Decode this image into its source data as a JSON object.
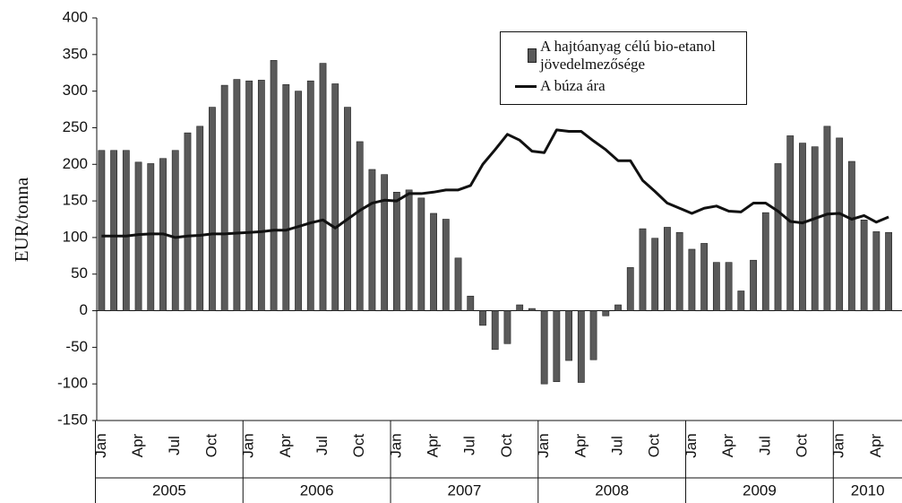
{
  "chart_data": {
    "type": "bar",
    "y_label": "EUR/tonna",
    "categories": [
      "Jan",
      null,
      null,
      "Apr",
      null,
      null,
      "Jul",
      null,
      null,
      "Oct",
      null,
      null,
      "Jan",
      null,
      null,
      "Apr",
      null,
      null,
      "Jul",
      null,
      null,
      "Oct",
      null,
      null,
      "Jan",
      null,
      null,
      "Apr",
      null,
      null,
      "Jul",
      null,
      null,
      "Oct",
      null,
      null,
      "Jan",
      null,
      null,
      "Apr",
      null,
      null,
      "Jul",
      null,
      null,
      "Oct",
      null,
      null,
      "Jan",
      null,
      null,
      "Apr",
      null,
      null,
      "Jul",
      null,
      null,
      "Oct",
      null,
      null,
      "Jan",
      null,
      null,
      "Apr",
      null
    ],
    "years": [
      "2005",
      "2006",
      "2007",
      "2008",
      "2009",
      "2010"
    ],
    "series": [
      {
        "name": "A hajtóanyag célú bio-etanol jövedelmezősége",
        "type": "bar",
        "color": "#5a5a5a",
        "values": [
          219,
          219,
          219,
          203,
          201,
          208,
          219,
          243,
          252,
          278,
          308,
          316,
          314,
          315,
          342,
          309,
          300,
          314,
          338,
          310,
          278,
          231,
          193,
          186,
          162,
          165,
          154,
          133,
          125,
          72,
          20,
          -20,
          -53,
          -45,
          8,
          3,
          -100,
          -97,
          -68,
          -98,
          -67,
          -7,
          8,
          59,
          112,
          99,
          114,
          107,
          84,
          92,
          66,
          66,
          27,
          69,
          134,
          201,
          239,
          229,
          224,
          252,
          236,
          204,
          124,
          108,
          107
        ]
      },
      {
        "name": "A búza ára",
        "type": "line",
        "color": "#111111",
        "values": [
          102,
          102,
          102,
          104,
          105,
          105,
          100,
          102,
          103,
          105,
          105,
          106,
          107,
          108,
          110,
          110,
          115,
          120,
          124,
          113,
          125,
          137,
          147,
          151,
          150,
          160,
          160,
          162,
          165,
          165,
          171,
          200,
          220,
          241,
          233,
          218,
          216,
          247,
          245,
          245,
          232,
          220,
          205,
          205,
          178,
          163,
          147,
          140,
          133,
          140,
          143,
          136,
          135,
          147,
          147,
          136,
          122,
          120,
          126,
          132,
          133,
          125,
          130,
          121,
          128
        ]
      }
    ],
    "ylim": [
      -150,
      400
    ],
    "yticks": [
      -150,
      -100,
      -50,
      0,
      50,
      100,
      150,
      200,
      250,
      300,
      350,
      400
    ],
    "legend": "upper right"
  }
}
